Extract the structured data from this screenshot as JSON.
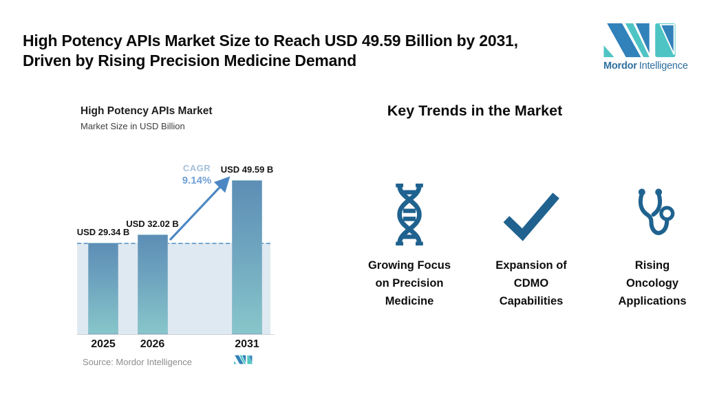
{
  "header": {
    "title_line1": "High Potency APIs Market Size to Reach USD 49.59 Billion by 2031,",
    "title_line2": "Driven by Rising Precision Medicine Demand",
    "brand": {
      "bold": "Mordor",
      "regular": "Intelligence"
    }
  },
  "chart": {
    "title": "High Potency APIs Market",
    "subtitle": "Market Size in USD Billion",
    "cagr_label": "CAGR",
    "cagr_value": "9.14%",
    "source": "Source: Mordor Intelligence"
  },
  "chart_data": {
    "type": "bar",
    "title": "High Potency APIs Market",
    "subtitle": "Market Size in USD Billion",
    "categories": [
      "2025",
      "2026",
      "2031"
    ],
    "values": [
      29.34,
      32.02,
      49.59
    ],
    "bar_labels": [
      "USD 29.34 B",
      "USD 32.02 B",
      "USD 49.59 B"
    ],
    "unit": "USD Billion",
    "cagr": "9.14%",
    "annotations": [
      "CAGR 9.14% arrow from 2026 bar to 2031 bar",
      "dashed reference line at 2025 level"
    ],
    "legend": "none",
    "grid": "off",
    "source": "Source: Mordor Intelligence"
  },
  "trends": {
    "heading": "Key Trends in the Market",
    "items": [
      {
        "icon": "dna-icon",
        "lines": [
          "Growing Focus",
          "on Precision",
          "Medicine"
        ]
      },
      {
        "icon": "checkmark-icon",
        "lines": [
          "Expansion of",
          "CDMO",
          "Capabilities"
        ]
      },
      {
        "icon": "stethoscope-icon",
        "lines": [
          "Rising",
          "Oncology",
          "Applications"
        ]
      }
    ]
  },
  "colors": {
    "bar_top": "#5d8eb6",
    "bar_bottom": "#87c6ca",
    "area_fill": "#dfe9f1",
    "dashed_line": "#74a6d0",
    "arrow": "#4c87c3",
    "cagr_label": "#a3c0dc",
    "cagr_value": "#6f9fd4",
    "icon": "#1f628f",
    "logo_blue": "#3181ba",
    "logo_teal": "#4fc4c4",
    "logo_text": "#2f6f9f",
    "source_text": "#8d8d8d"
  }
}
